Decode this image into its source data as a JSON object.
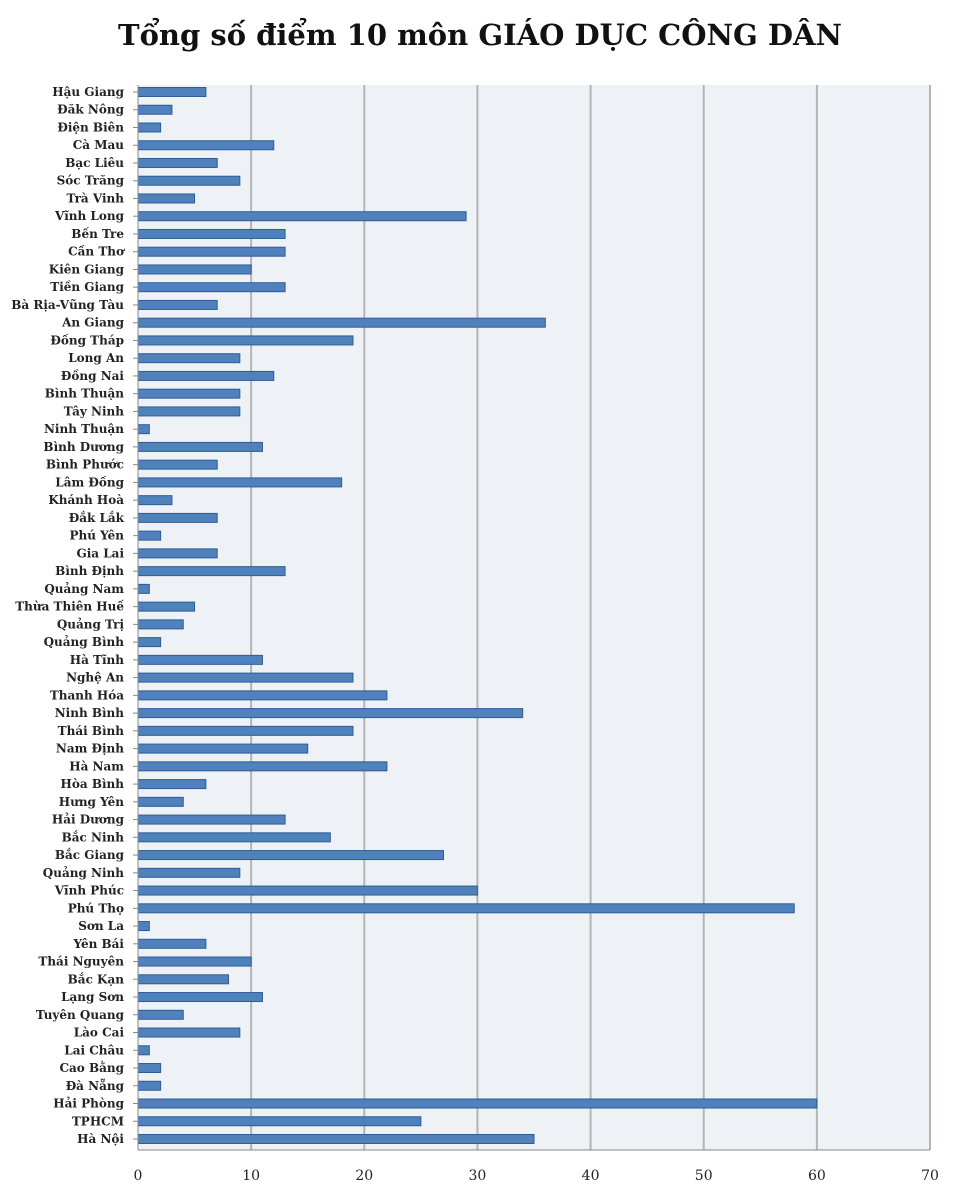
{
  "chart_data": {
    "type": "bar",
    "orientation": "horizontal",
    "title": "Tổng số điểm 10 môn GIÁO DỤC CÔNG DÂN",
    "xlabel": "",
    "ylabel": "",
    "xlim": [
      0,
      70
    ],
    "xticks": [
      "0",
      "10",
      "20",
      "30",
      "40",
      "50",
      "60",
      "70"
    ],
    "grid": true,
    "legend": "none",
    "colors": {
      "bar": "#4f81bd",
      "bar_edge": "#2f5d92",
      "plot_bg": "#eef2f7",
      "grid": "#b4b4b4"
    },
    "categories": [
      "Hậu Giang",
      "Đăk Nông",
      "Điện Biên",
      "Cà Mau",
      "Bạc Liêu",
      "Sóc Trăng",
      "Trà Vinh",
      "Vĩnh Long",
      "Bến Tre",
      "Cần Thơ",
      "Kiên Giang",
      "Tiền Giang",
      "Bà Rịa-Vũng Tàu",
      "An Giang",
      "Đồng Tháp",
      "Long An",
      "Đồng Nai",
      "Bình Thuận",
      "Tây Ninh",
      "Ninh Thuận",
      "Bình Dương",
      "Bình Phước",
      "Lâm Đồng",
      "Khánh Hoà",
      "Đắk Lắk",
      "Phú Yên",
      "Gia Lai",
      "Bình Định",
      "Quảng Nam",
      "Thừa Thiên Huế",
      "Quảng Trị",
      "Quảng Bình",
      "Hà Tĩnh",
      "Nghệ An",
      "Thanh Hóa",
      "Ninh Bình",
      "Thái Bình",
      "Nam Định",
      "Hà Nam",
      "Hòa Bình",
      "Hưng Yên",
      "Hải Dương",
      "Bắc Ninh",
      "Bắc Giang",
      "Quảng Ninh",
      "Vĩnh Phúc",
      "Phú Thọ",
      "Sơn La",
      "Yên Bái",
      "Thái Nguyên",
      "Bắc Kạn",
      "Lạng Sơn",
      "Tuyên Quang",
      "Lào Cai",
      "Lai Châu",
      "Cao Bằng",
      "Đà Nẵng",
      "Hải Phòng",
      "TPHCM",
      "Hà Nội"
    ],
    "values": [
      6,
      3,
      2,
      12,
      7,
      9,
      5,
      29,
      13,
      13,
      10,
      13,
      7,
      36,
      19,
      9,
      12,
      9,
      9,
      1,
      11,
      7,
      18,
      3,
      7,
      2,
      7,
      13,
      1,
      5,
      4,
      2,
      11,
      19,
      22,
      34,
      19,
      15,
      22,
      6,
      4,
      13,
      17,
      27,
      9,
      30,
      58,
      1,
      6,
      10,
      8,
      11,
      4,
      9,
      1,
      2,
      2,
      60,
      25,
      35
    ]
  }
}
